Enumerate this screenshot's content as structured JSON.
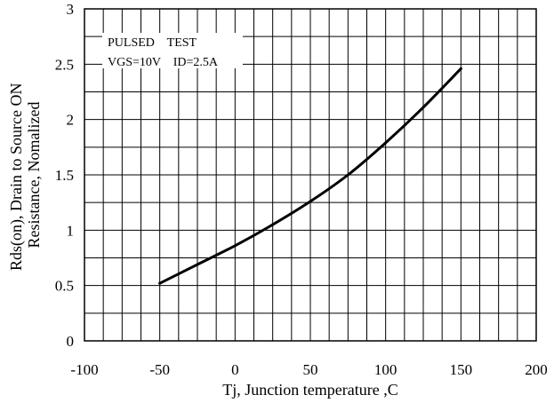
{
  "chart_data": {
    "type": "line",
    "title": "",
    "xlabel": "Tj, Junction temperature ,C",
    "ylabel": [
      "Rds(on), Drain to Source ON",
      "Resistance, Nomalized"
    ],
    "xlim": [
      -100,
      200
    ],
    "ylim": [
      0,
      3
    ],
    "xticks": [
      -100,
      -50,
      0,
      50,
      100,
      150,
      200
    ],
    "yticks": [
      0,
      0.5,
      1,
      1.5,
      2,
      2.5,
      3
    ],
    "grid": true,
    "annotations": [
      "PULSED    TEST",
      "VGS=10V    ID=2.5A"
    ],
    "series": [
      {
        "x": [
          -50,
          -25,
          0,
          25,
          50,
          75,
          100,
          125,
          150
        ],
        "y": [
          0.52,
          0.69,
          0.86,
          1.05,
          1.26,
          1.5,
          1.79,
          2.11,
          2.46
        ]
      }
    ]
  }
}
